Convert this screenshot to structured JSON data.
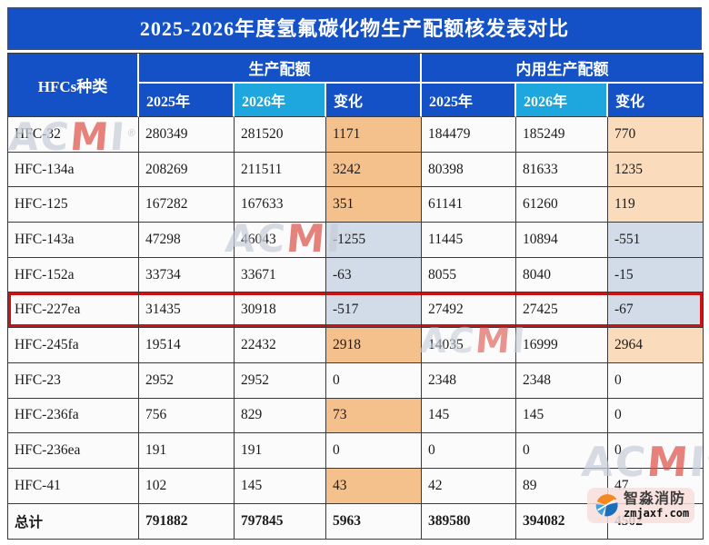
{
  "title": "2025-2026年度氢氟碳化物生产配额核发表对比",
  "table": {
    "species_header": "HFCs种类",
    "groups": [
      {
        "label": "生产配额"
      },
      {
        "label": "内用生产配额"
      }
    ],
    "sub_headers": [
      "2025年",
      "2026年",
      "变化",
      "2025年",
      "2026年",
      "变化"
    ],
    "rows": [
      {
        "label": "HFC-32",
        "values": [
          "280349",
          "281520",
          "1171",
          "184479",
          "185249",
          "770"
        ],
        "bg": [
          "",
          "",
          "positive_strong",
          "",
          "",
          "positive_light"
        ]
      },
      {
        "label": "HFC-134a",
        "values": [
          "208269",
          "211511",
          "3242",
          "80398",
          "81633",
          "1235"
        ],
        "bg": [
          "",
          "",
          "positive_strong",
          "",
          "",
          "positive_light"
        ]
      },
      {
        "label": "HFC-125",
        "values": [
          "167282",
          "167633",
          "351",
          "61141",
          "61260",
          "119"
        ],
        "bg": [
          "",
          "",
          "positive_strong",
          "",
          "",
          "positive_light"
        ]
      },
      {
        "label": "HFC-143a",
        "values": [
          "47298",
          "46043",
          "-1255",
          "11445",
          "10894",
          "-551"
        ],
        "bg": [
          "",
          "",
          "negative",
          "",
          "",
          "negative"
        ]
      },
      {
        "label": "HFC-152a",
        "values": [
          "33734",
          "33671",
          "-63",
          "8055",
          "8040",
          "-15"
        ],
        "bg": [
          "",
          "",
          "negative",
          "",
          "",
          "negative"
        ]
      },
      {
        "label": "HFC-227ea",
        "values": [
          "31435",
          "30918",
          "-517",
          "27492",
          "27425",
          "-67"
        ],
        "bg": [
          "",
          "",
          "negative",
          "",
          "",
          "negative"
        ],
        "highlighted": true
      },
      {
        "label": "HFC-245fa",
        "values": [
          "19514",
          "22432",
          "2918",
          "14035",
          "16999",
          "2964"
        ],
        "bg": [
          "",
          "",
          "positive_strong",
          "",
          "",
          "positive_light"
        ]
      },
      {
        "label": "HFC-23",
        "values": [
          "2952",
          "2952",
          "0",
          "2348",
          "2348",
          "0"
        ],
        "bg": [
          "",
          "",
          "",
          "",
          "",
          ""
        ]
      },
      {
        "label": "HFC-236fa",
        "values": [
          "756",
          "829",
          "73",
          "145",
          "145",
          "0"
        ],
        "bg": [
          "",
          "",
          "positive_strong",
          "",
          "",
          ""
        ]
      },
      {
        "label": "HFC-236ea",
        "values": [
          "191",
          "191",
          "0",
          "0",
          "0",
          "0"
        ],
        "bg": [
          "",
          "",
          "",
          "",
          "",
          ""
        ]
      },
      {
        "label": "HFC-41",
        "values": [
          "102",
          "145",
          "43",
          "42",
          "89",
          "47"
        ],
        "bg": [
          "",
          "",
          "positive_strong",
          "",
          "",
          ""
        ]
      },
      {
        "label": "总计",
        "values": [
          "791882",
          "797845",
          "5963",
          "389580",
          "394082",
          "4502"
        ],
        "bg": [
          "",
          "",
          "",
          "",
          "",
          ""
        ],
        "total": true
      }
    ]
  },
  "watermark": {
    "left": "AC",
    "red": "M",
    "right": "I",
    "reg": "®"
  },
  "logo": {
    "name": "智淼消防",
    "domain": "zmjaxf.com"
  },
  "colors": {
    "header_blue": "#1451c6",
    "cyan_2026": "#1ea6de",
    "positive_strong": "#f4c08c",
    "positive_light": "#fadcbc",
    "negative": "#d2dbe8",
    "highlight_border": "#c81414",
    "row_bg": "#fbfbfc"
  }
}
